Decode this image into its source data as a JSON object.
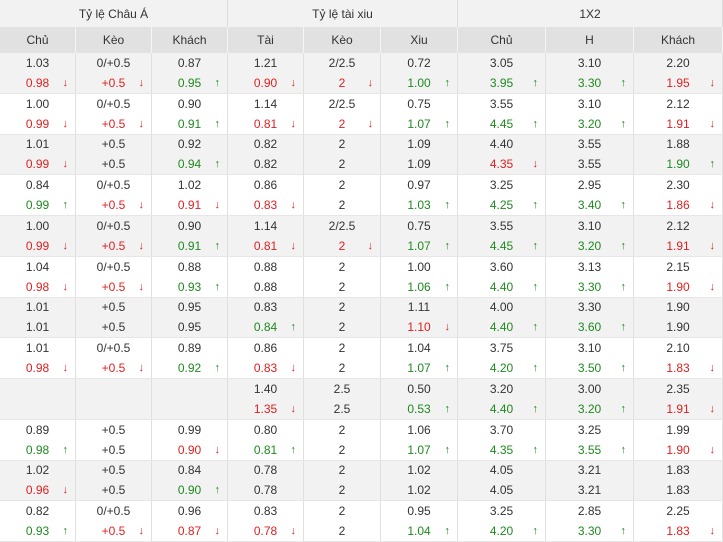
{
  "header": {
    "groups": [
      "Tỷ lệ Châu Á",
      "Tỷ lệ tài xiu",
      "1X2"
    ],
    "columns": [
      "Chủ",
      "Kèo",
      "Khách",
      "Tài",
      "Kèo",
      "Xiu",
      "Chủ",
      "H",
      "Khách"
    ]
  },
  "colors": {
    "up": "#1f8a1f",
    "down": "#e02020",
    "header_bg": "#e1e1e1",
    "alt_row_bg": "#f2f2f2"
  },
  "rows": [
    {
      "cells": [
        {
          "a": "1.03",
          "b": "0.98",
          "bt": "down"
        },
        {
          "a": "0/+0.5",
          "b": "+0.5",
          "bt": "down"
        },
        {
          "a": "0.87",
          "b": "0.95",
          "bt": "up"
        },
        {
          "a": "1.21",
          "b": "0.90",
          "bt": "down"
        },
        {
          "a": "2/2.5",
          "b": "2",
          "bt": "down"
        },
        {
          "a": "0.72",
          "b": "1.00",
          "bt": "up"
        },
        {
          "a": "3.05",
          "b": "3.95",
          "bt": "up"
        },
        {
          "a": "3.10",
          "b": "3.30",
          "bt": "up"
        },
        {
          "a": "2.20",
          "b": "1.95",
          "bt": "down"
        }
      ]
    },
    {
      "cells": [
        {
          "a": "1.00",
          "b": "0.99",
          "bt": "down"
        },
        {
          "a": "0/+0.5",
          "b": "+0.5",
          "bt": "down"
        },
        {
          "a": "0.90",
          "b": "0.91",
          "bt": "up"
        },
        {
          "a": "1.14",
          "b": "0.81",
          "bt": "down"
        },
        {
          "a": "2/2.5",
          "b": "2",
          "bt": "down"
        },
        {
          "a": "0.75",
          "b": "1.07",
          "bt": "up"
        },
        {
          "a": "3.55",
          "b": "4.45",
          "bt": "up"
        },
        {
          "a": "3.10",
          "b": "3.20",
          "bt": "up"
        },
        {
          "a": "2.12",
          "b": "1.91",
          "bt": "down"
        }
      ]
    },
    {
      "cells": [
        {
          "a": "1.01",
          "b": "0.99",
          "bt": "down"
        },
        {
          "a": "+0.5",
          "b": "+0.5",
          "bt": ""
        },
        {
          "a": "0.92",
          "b": "0.94",
          "bt": "up"
        },
        {
          "a": "0.82",
          "b": "0.82",
          "bt": ""
        },
        {
          "a": "2",
          "b": "2",
          "bt": ""
        },
        {
          "a": "1.09",
          "b": "1.09",
          "bt": ""
        },
        {
          "a": "4.40",
          "b": "4.35",
          "bt": "down"
        },
        {
          "a": "3.55",
          "b": "3.55",
          "bt": ""
        },
        {
          "a": "1.88",
          "b": "1.90",
          "bt": "up"
        }
      ]
    },
    {
      "cells": [
        {
          "a": "0.84",
          "b": "0.99",
          "bt": "up"
        },
        {
          "a": "0/+0.5",
          "b": "+0.5",
          "bt": "down"
        },
        {
          "a": "1.02",
          "b": "0.91",
          "bt": "down"
        },
        {
          "a": "0.86",
          "b": "0.83",
          "bt": "down"
        },
        {
          "a": "2",
          "b": "2",
          "bt": ""
        },
        {
          "a": "0.97",
          "b": "1.03",
          "bt": "up"
        },
        {
          "a": "3.25",
          "b": "4.25",
          "bt": "up"
        },
        {
          "a": "2.95",
          "b": "3.40",
          "bt": "up"
        },
        {
          "a": "2.30",
          "b": "1.86",
          "bt": "down"
        }
      ]
    },
    {
      "cells": [
        {
          "a": "1.00",
          "b": "0.99",
          "bt": "down"
        },
        {
          "a": "0/+0.5",
          "b": "+0.5",
          "bt": "down"
        },
        {
          "a": "0.90",
          "b": "0.91",
          "bt": "up"
        },
        {
          "a": "1.14",
          "b": "0.81",
          "bt": "down"
        },
        {
          "a": "2/2.5",
          "b": "2",
          "bt": "down"
        },
        {
          "a": "0.75",
          "b": "1.07",
          "bt": "up"
        },
        {
          "a": "3.55",
          "b": "4.45",
          "bt": "up"
        },
        {
          "a": "3.10",
          "b": "3.20",
          "bt": "up"
        },
        {
          "a": "2.12",
          "b": "1.91",
          "bt": "down"
        }
      ]
    },
    {
      "cells": [
        {
          "a": "1.04",
          "b": "0.98",
          "bt": "down"
        },
        {
          "a": "0/+0.5",
          "b": "+0.5",
          "bt": "down"
        },
        {
          "a": "0.88",
          "b": "0.93",
          "bt": "up"
        },
        {
          "a": "0.88",
          "b": "0.88",
          "bt": ""
        },
        {
          "a": "2",
          "b": "2",
          "bt": ""
        },
        {
          "a": "1.00",
          "b": "1.06",
          "bt": "up"
        },
        {
          "a": "3.60",
          "b": "4.40",
          "bt": "up"
        },
        {
          "a": "3.13",
          "b": "3.30",
          "bt": "up"
        },
        {
          "a": "2.15",
          "b": "1.90",
          "bt": "down"
        }
      ]
    },
    {
      "cells": [
        {
          "a": "1.01",
          "b": "1.01",
          "bt": ""
        },
        {
          "a": "+0.5",
          "b": "+0.5",
          "bt": ""
        },
        {
          "a": "0.95",
          "b": "0.95",
          "bt": ""
        },
        {
          "a": "0.83",
          "b": "0.84",
          "bt": "up"
        },
        {
          "a": "2",
          "b": "2",
          "bt": ""
        },
        {
          "a": "1.11",
          "b": "1.10",
          "bt": "down"
        },
        {
          "a": "4.00",
          "b": "4.40",
          "bt": "up"
        },
        {
          "a": "3.30",
          "b": "3.60",
          "bt": "up"
        },
        {
          "a": "1.90",
          "b": "1.90",
          "bt": ""
        }
      ]
    },
    {
      "cells": [
        {
          "a": "1.01",
          "b": "0.98",
          "bt": "down"
        },
        {
          "a": "0/+0.5",
          "b": "+0.5",
          "bt": "down"
        },
        {
          "a": "0.89",
          "b": "0.92",
          "bt": "up"
        },
        {
          "a": "0.86",
          "b": "0.83",
          "bt": "down"
        },
        {
          "a": "2",
          "b": "2",
          "bt": ""
        },
        {
          "a": "1.04",
          "b": "1.07",
          "bt": "up"
        },
        {
          "a": "3.75",
          "b": "4.20",
          "bt": "up"
        },
        {
          "a": "3.10",
          "b": "3.50",
          "bt": "up"
        },
        {
          "a": "2.10",
          "b": "1.83",
          "bt": "down"
        }
      ]
    },
    {
      "cells": [
        {
          "a": "",
          "b": "",
          "bt": ""
        },
        {
          "a": "",
          "b": "",
          "bt": ""
        },
        {
          "a": "",
          "b": "",
          "bt": ""
        },
        {
          "a": "1.40",
          "b": "1.35",
          "bt": "down"
        },
        {
          "a": "2.5",
          "b": "2.5",
          "bt": ""
        },
        {
          "a": "0.50",
          "b": "0.53",
          "bt": "up"
        },
        {
          "a": "3.20",
          "b": "4.40",
          "bt": "up"
        },
        {
          "a": "3.00",
          "b": "3.20",
          "bt": "up"
        },
        {
          "a": "2.35",
          "b": "1.91",
          "bt": "down"
        }
      ]
    },
    {
      "cells": [
        {
          "a": "0.89",
          "b": "0.98",
          "bt": "up"
        },
        {
          "a": "+0.5",
          "b": "+0.5",
          "bt": ""
        },
        {
          "a": "0.99",
          "b": "0.90",
          "bt": "down"
        },
        {
          "a": "0.80",
          "b": "0.81",
          "bt": "up"
        },
        {
          "a": "2",
          "b": "2",
          "bt": ""
        },
        {
          "a": "1.06",
          "b": "1.07",
          "bt": "up"
        },
        {
          "a": "3.70",
          "b": "4.35",
          "bt": "up"
        },
        {
          "a": "3.25",
          "b": "3.55",
          "bt": "up"
        },
        {
          "a": "1.99",
          "b": "1.90",
          "bt": "down"
        }
      ]
    },
    {
      "cells": [
        {
          "a": "1.02",
          "b": "0.96",
          "bt": "down"
        },
        {
          "a": "+0.5",
          "b": "+0.5",
          "bt": ""
        },
        {
          "a": "0.84",
          "b": "0.90",
          "bt": "up"
        },
        {
          "a": "0.78",
          "b": "0.78",
          "bt": ""
        },
        {
          "a": "2",
          "b": "2",
          "bt": ""
        },
        {
          "a": "1.02",
          "b": "1.02",
          "bt": ""
        },
        {
          "a": "4.05",
          "b": "4.05",
          "bt": ""
        },
        {
          "a": "3.21",
          "b": "3.21",
          "bt": ""
        },
        {
          "a": "1.83",
          "b": "1.83",
          "bt": ""
        }
      ]
    },
    {
      "cells": [
        {
          "a": "0.82",
          "b": "0.93",
          "bt": "up"
        },
        {
          "a": "0/+0.5",
          "b": "+0.5",
          "bt": "down"
        },
        {
          "a": "0.96",
          "b": "0.87",
          "bt": "down"
        },
        {
          "a": "0.83",
          "b": "0.78",
          "bt": "down"
        },
        {
          "a": "2",
          "b": "2",
          "bt": ""
        },
        {
          "a": "0.95",
          "b": "1.04",
          "bt": "up"
        },
        {
          "a": "3.25",
          "b": "4.20",
          "bt": "up"
        },
        {
          "a": "2.85",
          "b": "3.30",
          "bt": "up"
        },
        {
          "a": "2.25",
          "b": "1.83",
          "bt": "down"
        }
      ]
    }
  ]
}
